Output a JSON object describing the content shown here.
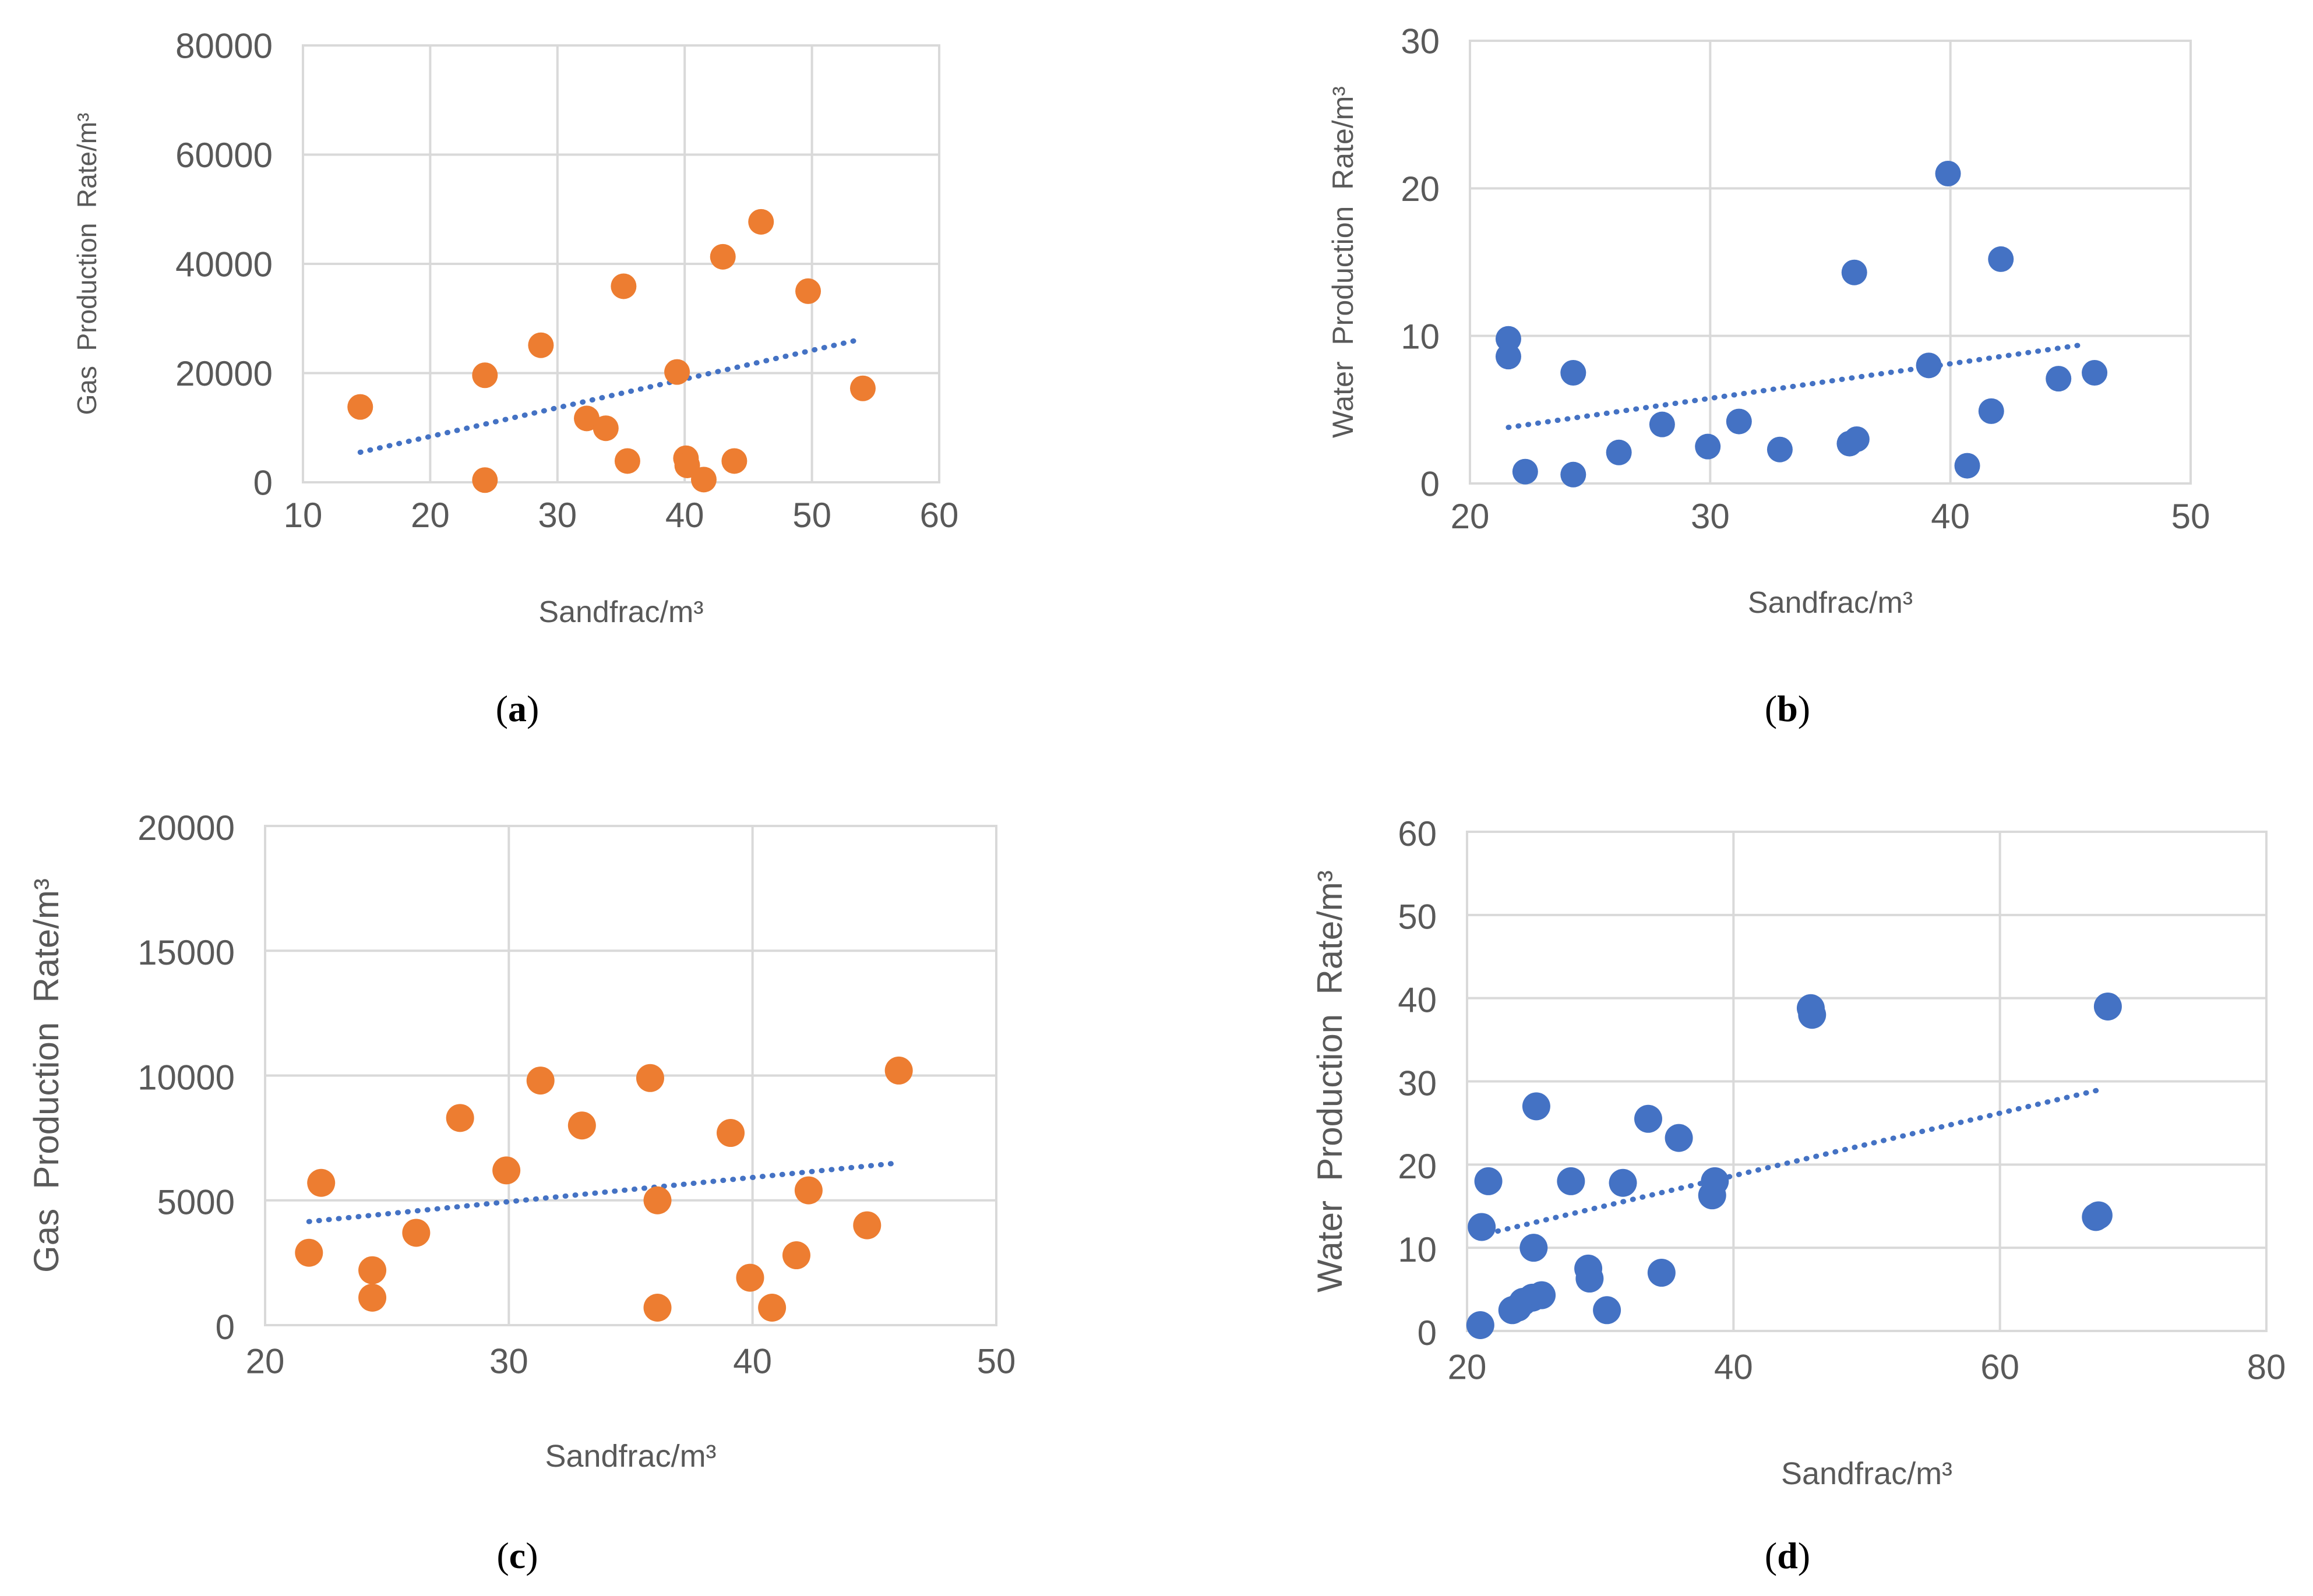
{
  "colors": {
    "orange": "#ED7D31",
    "blue": "#4472C4",
    "grid": "#D9D9D9",
    "tick_text": "#595959"
  },
  "chart_data": [
    {
      "id": "a",
      "type": "scatter",
      "caption_letter": "a",
      "xlabel": "Sandfrac/m³",
      "ylabel": "Gas  Production  Rate/m³",
      "xlim": [
        10,
        60
      ],
      "ylim": [
        0,
        80000
      ],
      "xticks": [
        "10",
        "20",
        "30",
        "40",
        "50",
        "60"
      ],
      "yticks": [
        "0",
        "20000",
        "40000",
        "60000",
        "80000"
      ],
      "trendline": {
        "type": "linear",
        "style": "dotted",
        "x": [
          14.5,
          53.5
        ],
        "y": [
          5500,
          26000
        ]
      },
      "series": [
        {
          "name": "Gas",
          "color": "orange",
          "x": [
            14.5,
            24.3,
            24.3,
            28.7,
            32.3,
            33.8,
            35.2,
            35.5,
            39.4,
            40.1,
            40.2,
            41.5,
            43.0,
            43.9,
            46.0,
            49.7,
            54.0
          ],
          "y": [
            13800,
            19600,
            400,
            25100,
            11700,
            9900,
            35900,
            3900,
            20200,
            4400,
            3100,
            500,
            41300,
            3900,
            47700,
            35000,
            17200
          ]
        }
      ]
    },
    {
      "id": "b",
      "type": "scatter",
      "caption_letter": "b",
      "xlabel": "Sandfrac/m³",
      "ylabel": "Water  Production  Rate/m³",
      "xlim": [
        20,
        50
      ],
      "ylim": [
        0,
        30
      ],
      "xticks": [
        "20",
        "30",
        "40",
        "50"
      ],
      "yticks": [
        "0",
        "10",
        "20",
        "30"
      ],
      "trendline": {
        "type": "linear",
        "style": "dotted",
        "x": [
          21.6,
          45.5
        ],
        "y": [
          3.8,
          9.4
        ]
      },
      "series": [
        {
          "name": "Water",
          "color": "blue",
          "x": [
            21.6,
            21.6,
            22.3,
            24.3,
            24.3,
            26.2,
            28.0,
            29.9,
            31.2,
            32.9,
            35.8,
            36.1,
            36.0,
            39.1,
            39.9,
            40.7,
            41.7,
            42.1,
            44.5,
            46.0
          ],
          "y": [
            9.8,
            8.6,
            0.8,
            7.5,
            0.6,
            2.1,
            4.0,
            2.5,
            4.2,
            2.3,
            2.7,
            3.0,
            14.3,
            8.0,
            21.0,
            1.2,
            4.9,
            15.2,
            7.1,
            7.5
          ]
        }
      ]
    },
    {
      "id": "c",
      "type": "scatter",
      "caption_letter": "c",
      "xlabel": "Sandfrac/m³",
      "ylabel": "Gas  Production  Rate/m³",
      "xlim": [
        20,
        50
      ],
      "ylim": [
        0,
        20000
      ],
      "xticks": [
        "20",
        "30",
        "40",
        "50"
      ],
      "yticks": [
        "0",
        "5000",
        "10000",
        "15000",
        "20000"
      ],
      "trendline": {
        "type": "linear",
        "style": "dotted",
        "x": [
          21.8,
          46.0
        ],
        "y": [
          4150,
          6500
        ]
      },
      "series": [
        {
          "name": "Gas",
          "color": "orange",
          "x": [
            21.8,
            22.3,
            24.4,
            24.4,
            26.2,
            28.0,
            29.9,
            31.3,
            33.0,
            35.8,
            36.1,
            36.1,
            39.1,
            39.9,
            40.8,
            41.8,
            42.3,
            44.7,
            46.0
          ],
          "y": [
            2900,
            5700,
            2200,
            1100,
            3700,
            8300,
            6200,
            9800,
            8000,
            9900,
            5000,
            700,
            7700,
            1900,
            700,
            2800,
            5400,
            4000,
            10200
          ]
        }
      ]
    },
    {
      "id": "d",
      "type": "scatter",
      "caption_letter": "d",
      "xlabel": "Sandfrac/m³",
      "ylabel": "Water  Production  Rate/m³",
      "xlim": [
        20,
        80
      ],
      "ylim": [
        0,
        60
      ],
      "xticks": [
        "20",
        "40",
        "60",
        "80"
      ],
      "yticks": [
        "0",
        "10",
        "20",
        "30",
        "40",
        "50",
        "60"
      ],
      "trendline": {
        "type": "linear",
        "style": "dotted",
        "x": [
          22.3,
          67.5
        ],
        "y": [
          12.0,
          29.0
        ]
      },
      "series": [
        {
          "name": "Water",
          "color": "blue",
          "x": [
            21.0,
            21.1,
            21.6,
            23.4,
            23.8,
            24.2,
            24.9,
            25.0,
            25.2,
            25.6,
            27.8,
            29.1,
            29.2,
            30.5,
            31.7,
            33.6,
            34.6,
            35.9,
            38.4,
            38.6,
            45.8,
            45.9,
            67.2,
            67.4,
            68.1
          ],
          "y": [
            0.7,
            12.5,
            18.0,
            2.5,
            2.8,
            3.5,
            4.0,
            10.0,
            27.0,
            4.3,
            18.0,
            7.5,
            6.3,
            2.5,
            17.8,
            25.5,
            7.0,
            23.2,
            16.3,
            18.0,
            38.8,
            38.0,
            13.7,
            13.9,
            39.0
          ]
        }
      ]
    }
  ]
}
